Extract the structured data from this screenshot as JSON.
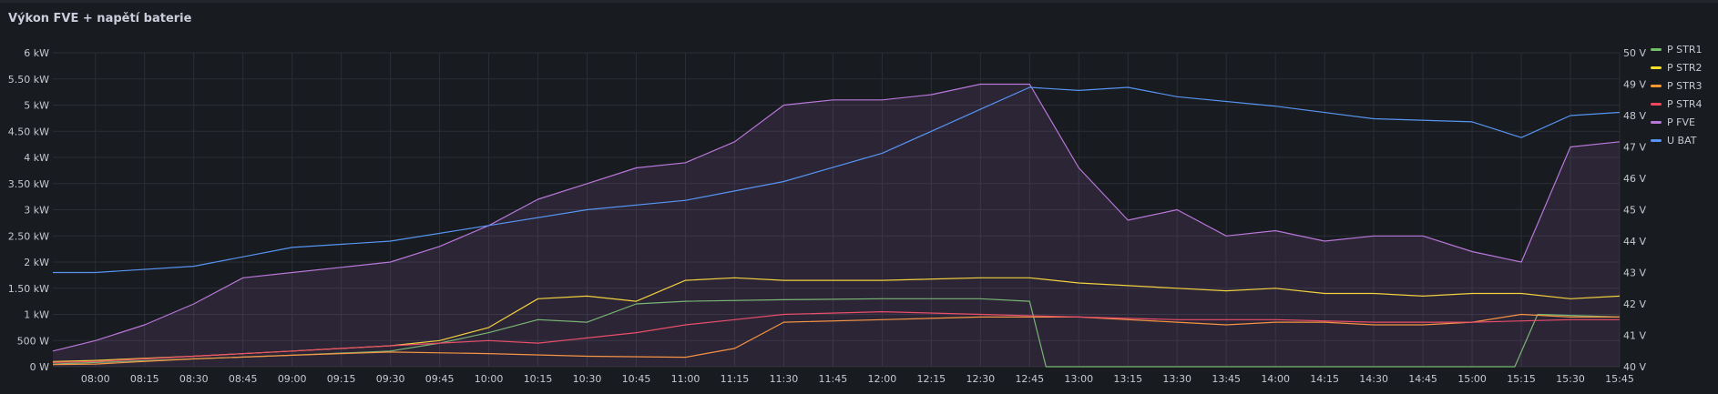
{
  "panel": {
    "title": "Výkon FVE + napětí baterie"
  },
  "chart_data": {
    "type": "line",
    "title": "Výkon FVE + napětí baterie",
    "x_tick_labels": [
      "08:00",
      "08:15",
      "08:30",
      "08:45",
      "09:00",
      "09:15",
      "09:30",
      "09:45",
      "10:00",
      "10:15",
      "10:30",
      "10:45",
      "11:00",
      "11:15",
      "11:30",
      "11:45",
      "12:00",
      "12:15",
      "12:30",
      "12:45",
      "13:00",
      "13:15",
      "13:30",
      "13:45",
      "14:00",
      "14:15",
      "14:30",
      "14:45",
      "15:00",
      "15:15",
      "15:30",
      "15:45"
    ],
    "y_left_ticks": [
      "0 W",
      "500 W",
      "1 kW",
      "1.50 kW",
      "2 kW",
      "2.50 kW",
      "3 kW",
      "3.50 kW",
      "4 kW",
      "4.50 kW",
      "5 kW",
      "5.50 kW",
      "6 kW"
    ],
    "y_right_ticks": [
      "40 V",
      "41 V",
      "42 V",
      "43 V",
      "44 V",
      "45 V",
      "46 V",
      "47 V",
      "48 V",
      "49 V",
      "50 V"
    ],
    "y_left_range_W": [
      0,
      6000
    ],
    "y_right_range_V": [
      40,
      50
    ],
    "x_range": [
      "07:47",
      "15:45"
    ],
    "grid": true,
    "legend_position": "right",
    "series": [
      {
        "name": "P STR1",
        "axis": "left",
        "color": "#73bf69",
        "x": [
          "07:47",
          "08:00",
          "08:30",
          "09:00",
          "09:30",
          "09:45",
          "10:00",
          "10:15",
          "10:30",
          "10:45",
          "11:00",
          "11:30",
          "12:00",
          "12:30",
          "12:45",
          "12:50",
          "13:30",
          "14:00",
          "14:30",
          "15:00",
          "15:13",
          "15:20",
          "15:45"
        ],
        "values": [
          50,
          80,
          150,
          220,
          300,
          450,
          650,
          900,
          850,
          1200,
          1250,
          1280,
          1300,
          1300,
          1250,
          0,
          0,
          0,
          0,
          0,
          0,
          1000,
          950
        ]
      },
      {
        "name": "P STR2",
        "axis": "left",
        "color": "#fade2a",
        "x": [
          "07:47",
          "08:00",
          "08:30",
          "09:00",
          "09:30",
          "09:45",
          "10:00",
          "10:15",
          "10:30",
          "10:45",
          "11:00",
          "11:15",
          "11:30",
          "12:00",
          "12:30",
          "12:45",
          "13:00",
          "13:15",
          "13:30",
          "13:45",
          "14:00",
          "14:15",
          "14:30",
          "14:45",
          "15:00",
          "15:15",
          "15:30",
          "15:45"
        ],
        "values": [
          100,
          120,
          200,
          300,
          400,
          500,
          750,
          1300,
          1350,
          1250,
          1650,
          1700,
          1650,
          1650,
          1700,
          1700,
          1600,
          1550,
          1500,
          1450,
          1500,
          1400,
          1400,
          1350,
          1400,
          1400,
          1300,
          1350
        ]
      },
      {
        "name": "P STR3",
        "axis": "left",
        "color": "#ff9830",
        "x": [
          "07:47",
          "08:00",
          "08:30",
          "09:00",
          "09:30",
          "10:00",
          "10:30",
          "11:00",
          "11:15",
          "11:30",
          "12:00",
          "12:30",
          "12:45",
          "13:00",
          "13:15",
          "13:30",
          "13:45",
          "14:00",
          "14:15",
          "14:30",
          "14:45",
          "15:00",
          "15:15",
          "15:30",
          "15:45"
        ],
        "values": [
          40,
          50,
          150,
          220,
          280,
          250,
          200,
          180,
          350,
          850,
          900,
          950,
          950,
          950,
          900,
          850,
          800,
          850,
          850,
          800,
          800,
          850,
          1000,
          950,
          950
        ]
      },
      {
        "name": "P STR4",
        "axis": "left",
        "color": "#f2495c",
        "x": [
          "07:47",
          "08:00",
          "08:30",
          "09:00",
          "09:30",
          "10:00",
          "10:15",
          "10:30",
          "10:45",
          "11:00",
          "11:15",
          "11:30",
          "12:00",
          "12:30",
          "13:00",
          "13:30",
          "14:00",
          "14:30",
          "15:00",
          "15:30",
          "15:45"
        ],
        "values": [
          80,
          100,
          200,
          300,
          400,
          500,
          450,
          550,
          650,
          800,
          900,
          1000,
          1050,
          1000,
          950,
          900,
          900,
          850,
          850,
          900,
          900
        ]
      },
      {
        "name": "P FVE",
        "axis": "left",
        "color": "#b877d9",
        "x": [
          "07:47",
          "08:00",
          "08:15",
          "08:30",
          "08:45",
          "09:00",
          "09:15",
          "09:30",
          "09:45",
          "10:00",
          "10:15",
          "10:30",
          "10:45",
          "11:00",
          "11:15",
          "11:30",
          "11:45",
          "12:00",
          "12:15",
          "12:30",
          "12:45",
          "13:00",
          "13:15",
          "13:30",
          "13:45",
          "14:00",
          "14:15",
          "14:30",
          "14:45",
          "15:00",
          "15:15",
          "15:30",
          "15:45"
        ],
        "values": [
          300,
          500,
          800,
          1200,
          1700,
          1800,
          1900,
          2000,
          2300,
          2700,
          3200,
          3500,
          3800,
          3900,
          4300,
          5000,
          5100,
          5100,
          5200,
          5400,
          5400,
          3800,
          2800,
          3000,
          2500,
          2600,
          2400,
          2500,
          2500,
          2200,
          2000,
          4200,
          4300
        ]
      },
      {
        "name": "U BAT",
        "axis": "right",
        "color": "#5794f2",
        "x": [
          "07:47",
          "08:00",
          "08:30",
          "09:00",
          "09:30",
          "10:00",
          "10:30",
          "11:00",
          "11:30",
          "12:00",
          "12:15",
          "12:30",
          "12:45",
          "13:00",
          "13:15",
          "13:30",
          "14:00",
          "14:30",
          "15:00",
          "15:15",
          "15:30",
          "15:45"
        ],
        "values": [
          43.0,
          43.0,
          43.2,
          43.8,
          44.0,
          44.5,
          45.0,
          45.3,
          45.9,
          46.8,
          47.5,
          48.2,
          48.9,
          48.8,
          48.9,
          48.6,
          48.3,
          47.9,
          47.8,
          47.3,
          48.0,
          48.1
        ]
      }
    ]
  }
}
